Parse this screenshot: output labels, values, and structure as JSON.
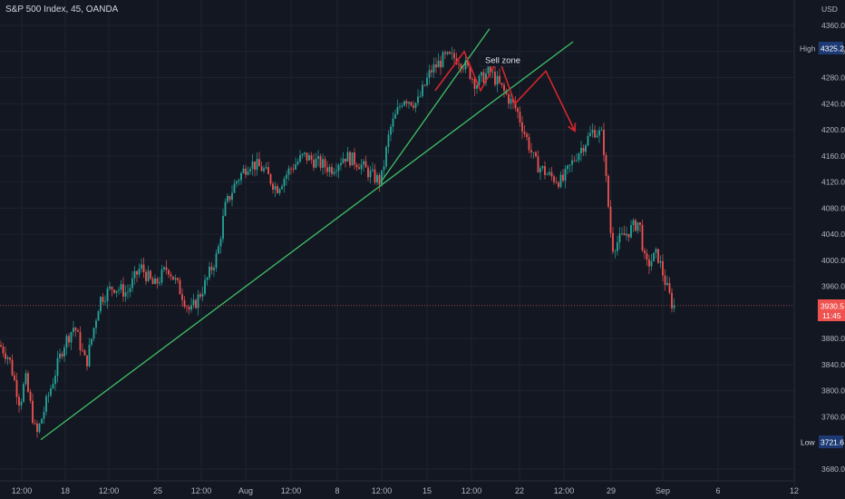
{
  "symbol_title": "S&P 500 Index, 45, OANDA",
  "chart_data": {
    "type": "candlestick",
    "currency": "USD",
    "ylim": [
      3660,
      4380
    ],
    "y_ticks": [
      4360,
      4320,
      4280,
      4240,
      4200,
      4160,
      4120,
      4080,
      4040,
      4000,
      3960,
      3880,
      3840,
      3800,
      3760,
      3680
    ],
    "x_labels": [
      "12:00",
      "18",
      "12:00",
      "25",
      "12:00",
      "Aug",
      "12:00",
      "8",
      "12:00",
      "15",
      "12:00",
      "22",
      "12:00",
      "29",
      "Sep",
      "6",
      "12"
    ],
    "grid": true,
    "high": {
      "label": "High",
      "value": "4325.2"
    },
    "low": {
      "label": "Low",
      "value": "3721.6"
    },
    "last": {
      "value": "3930.5",
      "countdown": "11:45"
    },
    "annotation": "Sell zone",
    "path_anchors": [
      [
        0,
        3870
      ],
      [
        10,
        3850
      ],
      [
        22,
        3780
      ],
      [
        28,
        3820
      ],
      [
        40,
        3730
      ],
      [
        55,
        3800
      ],
      [
        70,
        3870
      ],
      [
        82,
        3900
      ],
      [
        95,
        3840
      ],
      [
        110,
        3940
      ],
      [
        125,
        3960
      ],
      [
        140,
        3950
      ],
      [
        155,
        3990
      ],
      [
        170,
        3960
      ],
      [
        185,
        3990
      ],
      [
        200,
        3950
      ],
      [
        210,
        3920
      ],
      [
        225,
        3960
      ],
      [
        240,
        4010
      ],
      [
        248,
        4080
      ],
      [
        260,
        4120
      ],
      [
        275,
        4150
      ],
      [
        290,
        4140
      ],
      [
        305,
        4110
      ],
      [
        320,
        4140
      ],
      [
        335,
        4160
      ],
      [
        350,
        4150
      ],
      [
        365,
        4140
      ],
      [
        380,
        4160
      ],
      [
        395,
        4150
      ],
      [
        410,
        4130
      ],
      [
        420,
        4120
      ],
      [
        430,
        4200
      ],
      [
        445,
        4250
      ],
      [
        460,
        4240
      ],
      [
        475,
        4290
      ],
      [
        490,
        4310
      ],
      [
        505,
        4310
      ],
      [
        515,
        4295
      ],
      [
        525,
        4270
      ],
      [
        540,
        4290
      ],
      [
        555,
        4260
      ],
      [
        570,
        4230
      ],
      [
        580,
        4190
      ],
      [
        590,
        4150
      ],
      [
        605,
        4130
      ],
      [
        620,
        4120
      ],
      [
        635,
        4160
      ],
      [
        645,
        4180
      ],
      [
        655,
        4200
      ],
      [
        665,
        4190
      ],
      [
        668,
        4130
      ],
      [
        675,
        4020
      ],
      [
        690,
        4040
      ],
      [
        705,
        4060
      ],
      [
        712,
        3990
      ],
      [
        725,
        4010
      ],
      [
        735,
        3960
      ],
      [
        742,
        3930
      ]
    ],
    "trendlines": [
      {
        "color": "#3fc165",
        "from": [
          45,
          3725
        ],
        "to": [
          632,
          4335
        ]
      },
      {
        "color": "#3fc165",
        "from": [
          420,
          4120
        ],
        "to": [
          540,
          4355
        ]
      }
    ],
    "arrow_path": {
      "color": "#d7262b",
      "points": [
        [
          480,
          4260
        ],
        [
          512,
          4320
        ],
        [
          530,
          4260
        ],
        [
          550,
          4310
        ],
        [
          568,
          4240
        ],
        [
          602,
          4290
        ],
        [
          634,
          4198
        ]
      ]
    }
  },
  "colors": {
    "bull": "#26a69a",
    "bear": "#ef5350",
    "background": "#131722",
    "grid": "#1f2330"
  }
}
